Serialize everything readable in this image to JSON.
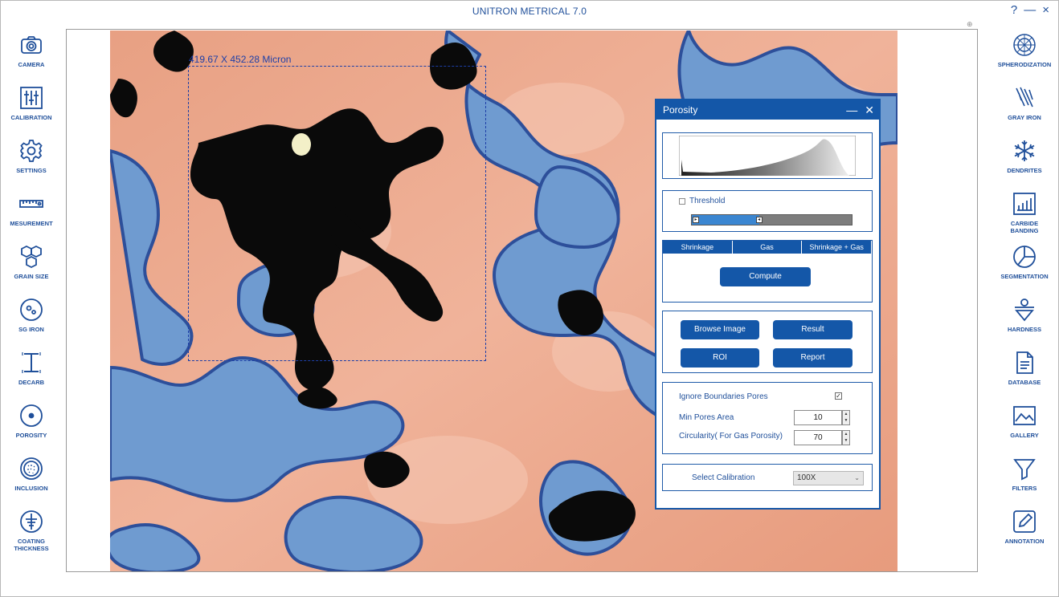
{
  "app": {
    "title": "UNITRON METRICAL 7.0"
  },
  "window_controls": {
    "help": "?",
    "minimize": "—",
    "close": "×"
  },
  "left_toolbar": [
    {
      "label": "CAMERA",
      "icon": "camera-icon"
    },
    {
      "label": "CALIBRATION",
      "icon": "sliders-icon"
    },
    {
      "label": "SETTINGS",
      "icon": "gear-icon"
    },
    {
      "label": "MESUREMENT",
      "icon": "ruler-icon"
    },
    {
      "label": "GRAIN SIZE",
      "icon": "hexagons-icon"
    },
    {
      "label": "SG IRON",
      "icon": "nodule-icon"
    },
    {
      "label": "DECARB",
      "icon": "ibeam-icon"
    },
    {
      "label": "POROSITY",
      "icon": "dot-circle-icon"
    },
    {
      "label": "INCLUSION",
      "icon": "inclusion-icon"
    },
    {
      "label": "COATING THICKNESS",
      "icon": "coating-icon"
    }
  ],
  "right_toolbar": [
    {
      "label": "SPHERODIZATION",
      "icon": "sphere-icon"
    },
    {
      "label": "GRAY IRON",
      "icon": "flakes-icon"
    },
    {
      "label": "DENDRITES",
      "icon": "snowflake-icon"
    },
    {
      "label": "CARBIDE BANDING",
      "icon": "bar-chart-icon"
    },
    {
      "label": "SEGMENTATION",
      "icon": "pie-icon"
    },
    {
      "label": "HARDNESS",
      "icon": "indenter-icon"
    },
    {
      "label": "DATABASE",
      "icon": "document-icon"
    },
    {
      "label": "GALLERY",
      "icon": "image-icon"
    },
    {
      "label": "FILTERS",
      "icon": "funnel-icon"
    },
    {
      "label": "ANNOTATION",
      "icon": "pencil-icon"
    }
  ],
  "image": {
    "roi_label": "419.67 X 452.28 Micron"
  },
  "porosity_panel": {
    "title": "Porosity",
    "threshold_label": "Threshold",
    "threshold_checked": false,
    "threshold_fill": 0.42,
    "tabs": [
      "Shrinkage",
      "Gas",
      "Shrinkage + Gas"
    ],
    "compute_label": "Compute",
    "browse_label": "Browse Image",
    "result_label": "Result",
    "roi_label": "ROI",
    "report_label": "Report",
    "ignore_boundaries_label": "Ignore Boundaries Pores",
    "ignore_boundaries_checked": true,
    "min_pores_area_label": "Min Pores Area",
    "min_pores_area_value": "10",
    "circularity_label": "Circularity( For Gas Porosity)",
    "circularity_value": "70",
    "select_calibration_label": "Select Calibration",
    "calibration_value": "100X"
  },
  "colors": {
    "accent": "#1457a8",
    "matrix": "#e9a184",
    "phase": "#5e8fc8",
    "pores": "#0a0a0a"
  }
}
